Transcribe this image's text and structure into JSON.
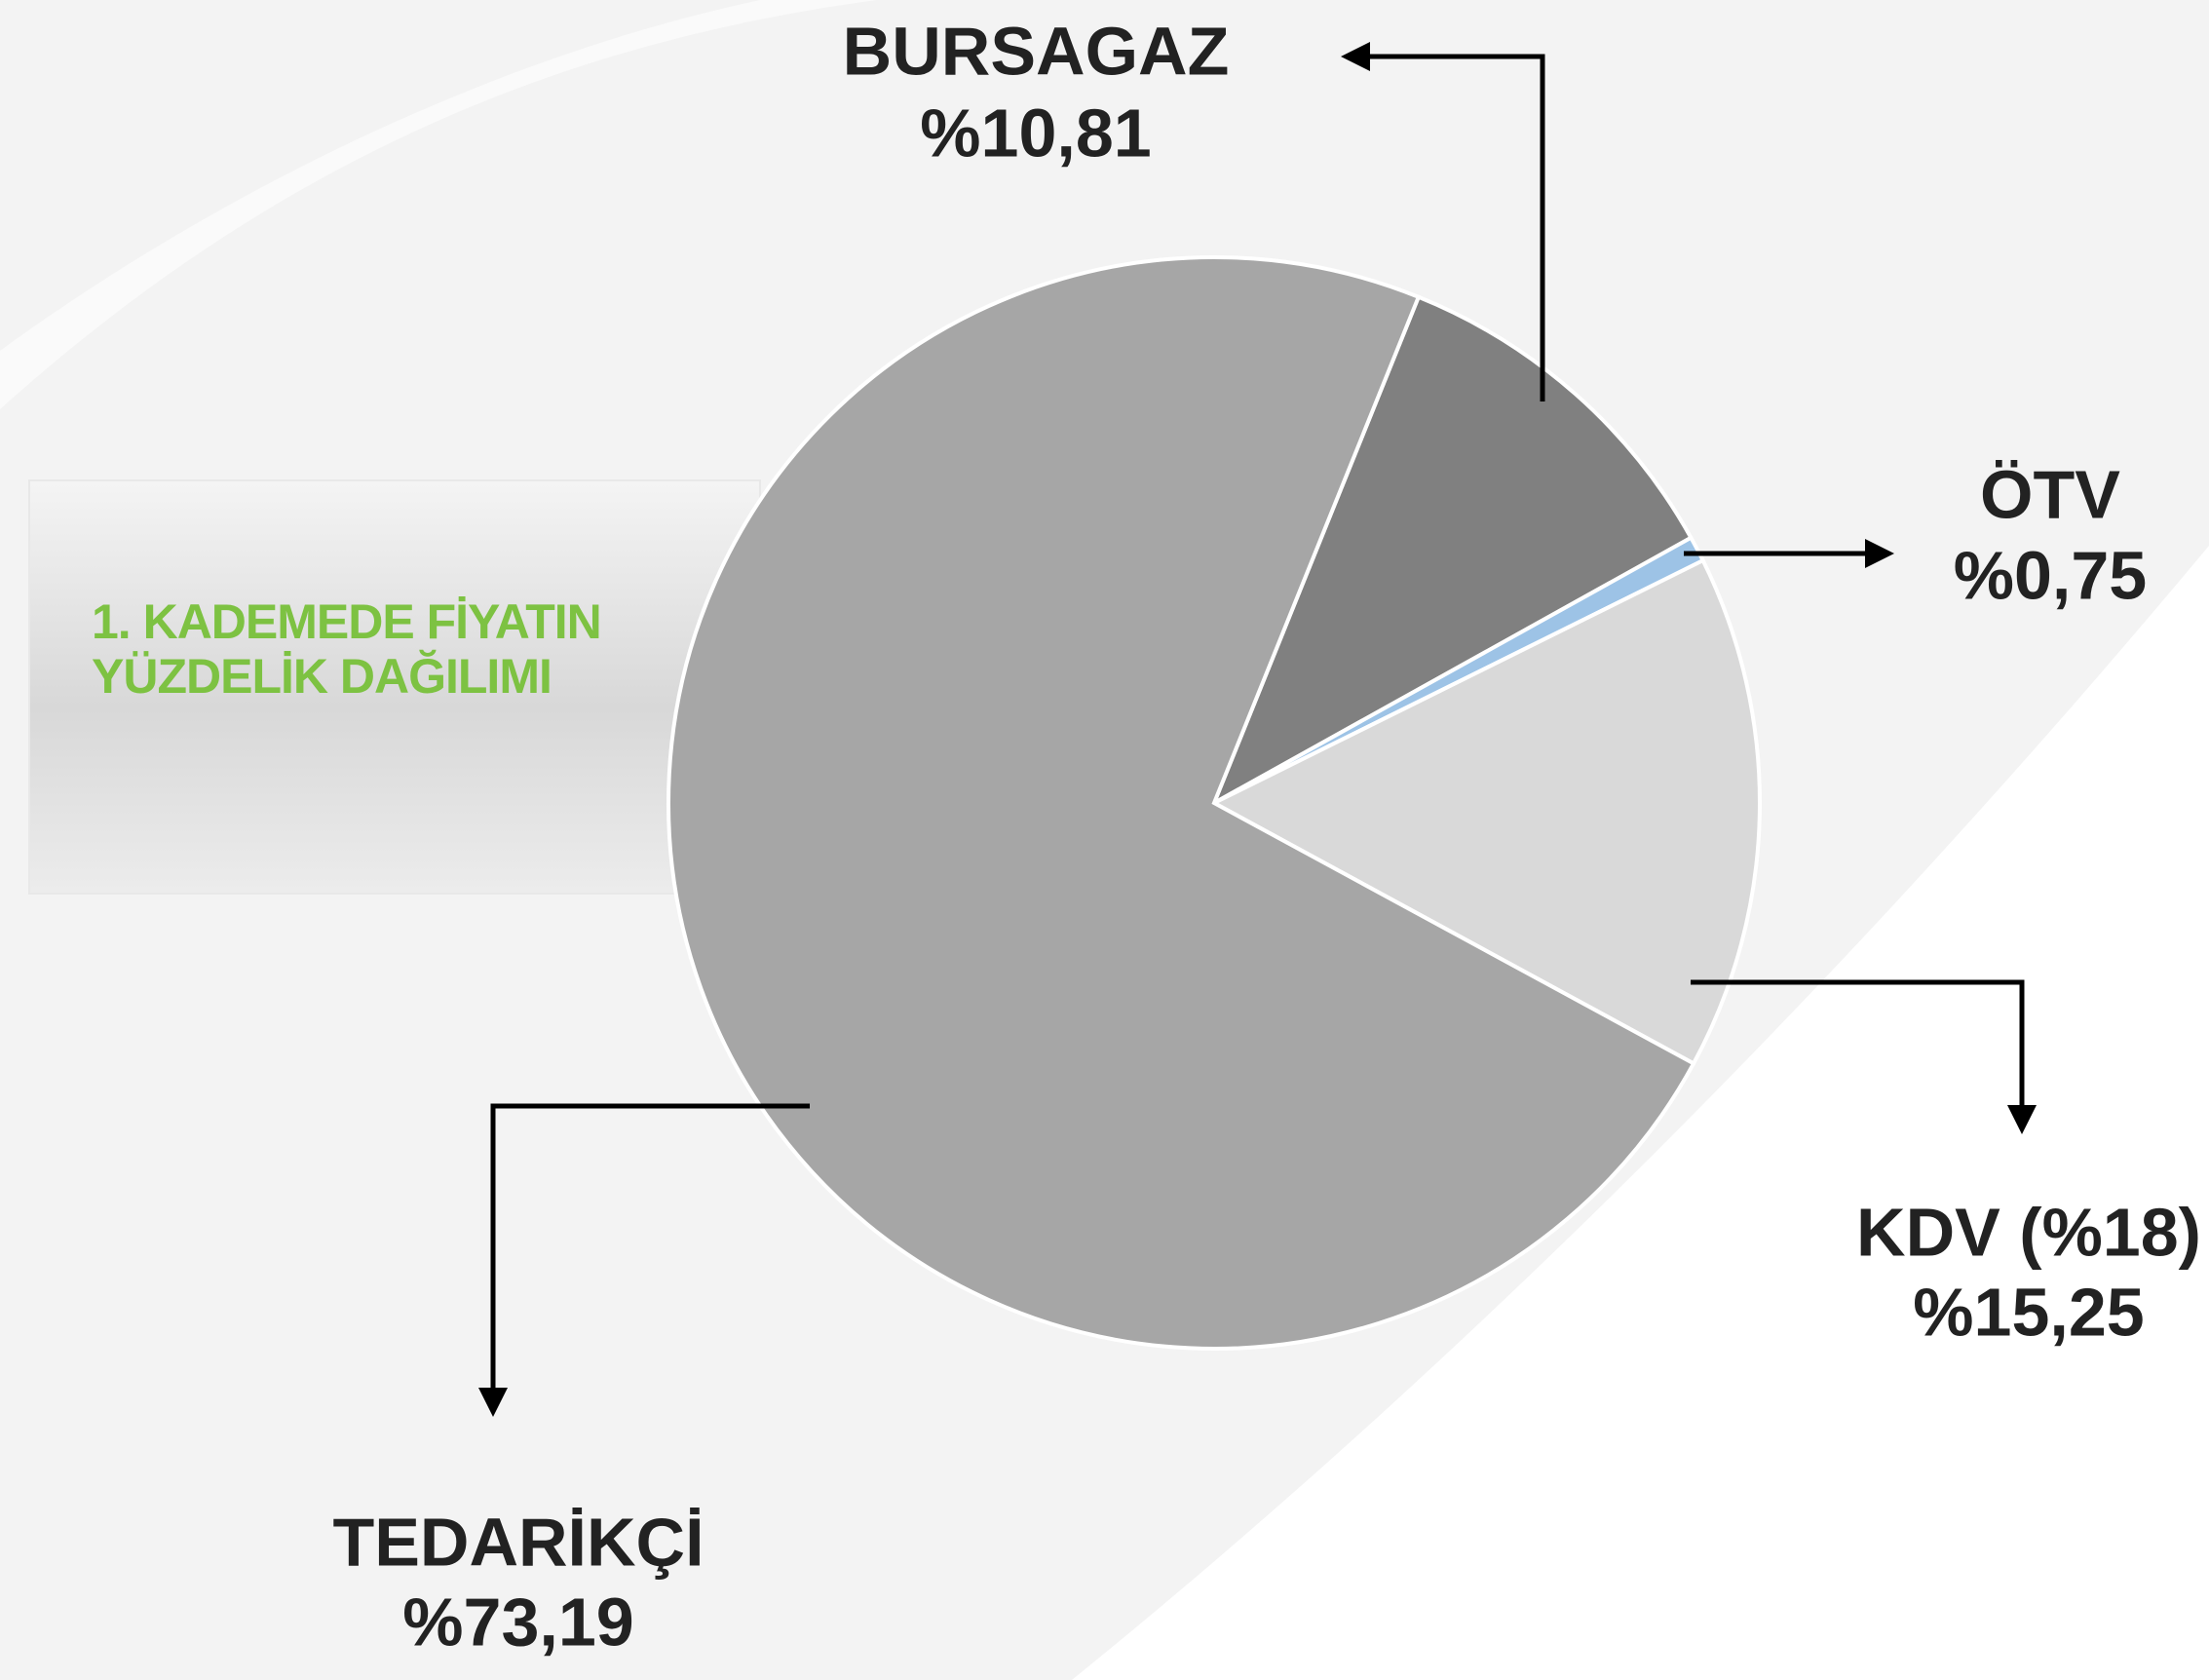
{
  "chart_data": {
    "type": "pie",
    "title": "1. KADEMEDE FİYATIN YÜZDELİK DAĞILIMI",
    "categories": [
      "BURSAGAZ",
      "ÖTV",
      "KDV (%18)",
      "TEDARİKÇİ"
    ],
    "values": [
      10.81,
      0.75,
      15.25,
      73.19
    ],
    "value_labels": [
      "%10,81",
      "%0,75",
      "%15,25",
      "%73,19"
    ],
    "colors": [
      "#808080",
      "#9dc3e6",
      "#d9d9d9",
      "#a6a6a6"
    ]
  }
}
